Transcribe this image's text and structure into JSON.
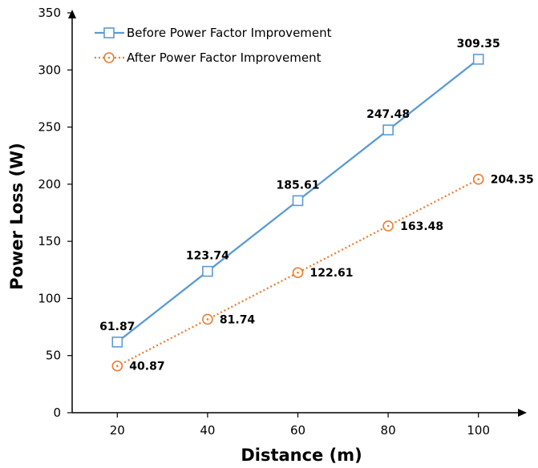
{
  "chart_data": {
    "type": "line",
    "xlabel": "Distance (m)",
    "ylabel": "Power Loss (W)",
    "x": [
      20,
      40,
      60,
      80,
      100
    ],
    "xlim": [
      10,
      110
    ],
    "ylim": [
      0,
      350
    ],
    "xticks": [
      20,
      40,
      60,
      80,
      100
    ],
    "yticks": [
      0,
      50,
      100,
      150,
      200,
      250,
      300,
      350
    ],
    "grid": false,
    "legend_position": "top-left",
    "series": [
      {
        "name": "Before Power Factor Improvement",
        "values": [
          61.87,
          123.74,
          185.61,
          247.48,
          309.35
        ],
        "labels": [
          "61.87",
          "123.74",
          "185.61",
          "247.48",
          "309.35"
        ],
        "color": "#5b9bd5",
        "line_style": "solid",
        "marker": "square"
      },
      {
        "name": "After Power Factor Improvement",
        "values": [
          40.87,
          81.74,
          122.61,
          163.48,
          204.35
        ],
        "labels": [
          "40.87",
          "81.74",
          "122.61",
          "163.48",
          "204.35"
        ],
        "color": "#ed7d31",
        "line_style": "dotted",
        "marker": "circle"
      }
    ]
  }
}
